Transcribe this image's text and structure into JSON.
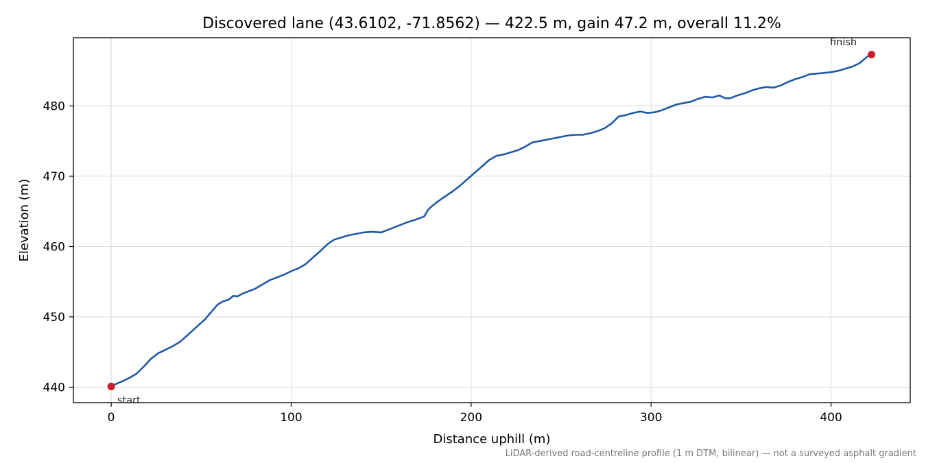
{
  "chart_data": {
    "type": "line",
    "title": "Discovered lane (43.6102, -71.8562) — 422.5 m, gain 47.2 m, overall 11.2%",
    "xlabel": "Distance uphill (m)",
    "ylabel": "Elevation (m)",
    "xlim": [
      -21,
      444
    ],
    "ylim": [
      437.8,
      489.7
    ],
    "xticks": [
      0,
      100,
      200,
      300,
      400
    ],
    "yticks": [
      440,
      450,
      460,
      470,
      480
    ],
    "grid": true,
    "line_color": "#1f5aa6",
    "marker_color": "#c8202a",
    "series": [
      {
        "x": [
          0,
          3,
          6,
          10,
          14,
          18,
          22,
          26,
          30,
          34,
          38,
          42,
          45,
          48,
          52,
          56,
          59,
          62,
          65,
          68,
          70,
          73,
          76,
          80,
          84,
          88,
          92,
          96,
          100,
          104,
          108,
          112,
          116,
          120,
          124,
          128,
          132,
          136,
          140,
          145,
          150,
          155,
          160,
          165,
          170,
          174,
          176,
          178,
          182,
          186,
          190,
          194,
          198,
          202,
          206,
          210,
          214,
          218,
          222,
          226,
          230,
          234,
          238,
          242,
          246,
          250,
          254,
          258,
          262,
          266,
          270,
          274,
          278,
          282,
          286,
          290,
          294,
          298,
          302,
          306,
          310,
          314,
          318,
          322,
          326,
          330,
          334,
          338,
          341,
          344,
          348,
          352,
          356,
          360,
          364,
          368,
          372,
          376,
          380,
          384,
          388,
          392,
          396,
          400,
          404,
          408,
          412,
          416,
          420,
          422.5
        ],
        "y": [
          440.1,
          440.5,
          440.8,
          441.3,
          441.9,
          442.9,
          444.0,
          444.8,
          445.3,
          445.8,
          446.4,
          447.3,
          448.0,
          448.7,
          449.6,
          450.8,
          451.7,
          452.2,
          452.4,
          453.0,
          452.9,
          453.3,
          453.6,
          454.0,
          454.6,
          455.2,
          455.6,
          456.0,
          456.5,
          456.9,
          457.5,
          458.4,
          459.3,
          460.3,
          461.0,
          461.3,
          461.6,
          461.8,
          462.0,
          462.1,
          462.0,
          462.5,
          463.0,
          463.5,
          463.9,
          464.3,
          465.2,
          465.7,
          466.5,
          467.2,
          467.9,
          468.7,
          469.6,
          470.5,
          471.4,
          472.3,
          472.9,
          473.1,
          473.4,
          473.7,
          474.2,
          474.8,
          475.0,
          475.2,
          475.4,
          475.6,
          475.8,
          475.9,
          475.9,
          476.1,
          476.4,
          476.8,
          477.5,
          478.5,
          478.7,
          479.0,
          479.2,
          479.0,
          479.1,
          479.4,
          479.8,
          480.2,
          480.4,
          480.6,
          481.0,
          481.3,
          481.2,
          481.5,
          481.1,
          481.1,
          481.5,
          481.8,
          482.2,
          482.5,
          482.7,
          482.6,
          482.9,
          483.4,
          483.8,
          484.1,
          484.5,
          484.6,
          484.7,
          484.8,
          485.0,
          485.3,
          485.6,
          486.1,
          487.0,
          487.3
        ]
      }
    ],
    "annotations": [
      {
        "text": "start",
        "x": 0,
        "y": 440.1
      },
      {
        "text": "finish",
        "x": 422.5,
        "y": 487.3
      }
    ],
    "footnote": "LiDAR-derived road-centreline profile (1 m DTM, bilinear) — not a surveyed asphalt gradient"
  }
}
